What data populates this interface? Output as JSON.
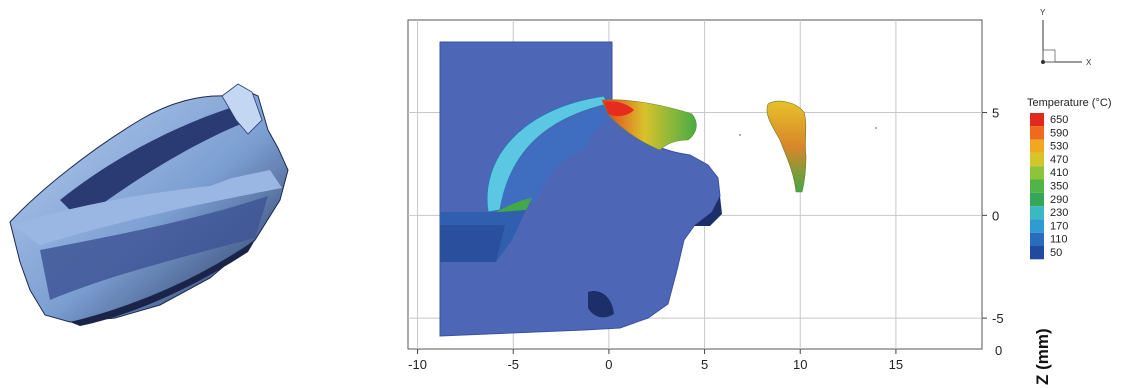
{
  "chart_data": {
    "type": "heatmap",
    "x_ticks": [
      "-10",
      "-5",
      "0",
      "5",
      "10",
      "15"
    ],
    "y_ticks": [
      "5",
      "0",
      "-5"
    ],
    "z_axis_tick": "0",
    "z_axis_label": "Z (mm)",
    "xlim": [
      -10.5,
      19.5
    ],
    "ylim": [
      -6.5,
      9.5
    ],
    "grid": true,
    "legend_position": "right",
    "legend": {
      "title": "Temperature (°C)",
      "levels": [
        "650",
        "590",
        "530",
        "470",
        "410",
        "350",
        "290",
        "230",
        "170",
        "110",
        "50"
      ],
      "colors": [
        "#e22a1c",
        "#f06a1e",
        "#f0a91e",
        "#d6c52a",
        "#8cc43a",
        "#52b347",
        "#35a655",
        "#3ab9c2",
        "#2e9bd3",
        "#2a6cbc",
        "#1f4aa0"
      ]
    }
  },
  "triad": {
    "y": "Y",
    "x": "X"
  },
  "colors": {
    "workpiece": "#4d66b5",
    "workpiece_edge": "#3a52a0",
    "tool_light": "#8aaed8",
    "tool_dark": "#1f2c57",
    "grid": "#c8c8c8"
  }
}
